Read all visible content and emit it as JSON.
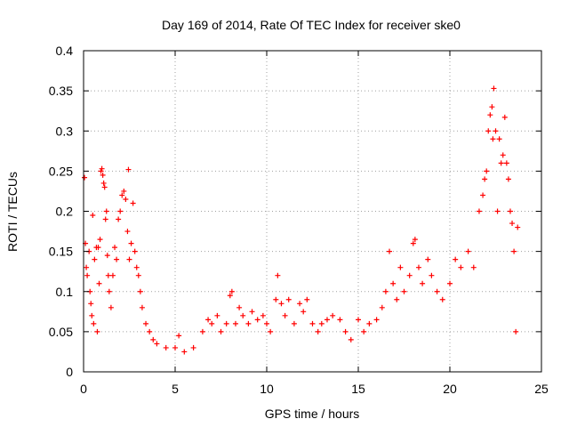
{
  "chart_data": {
    "type": "scatter",
    "title": "Day 169 of 2014, Rate Of TEC Index for receiver ske0",
    "xlabel": "GPS time / hours",
    "ylabel": "ROTI / TECUs",
    "xlim": [
      0,
      25
    ],
    "ylim": [
      0,
      0.4
    ],
    "x_ticks": [
      0,
      5,
      10,
      15,
      20,
      25
    ],
    "x_tick_labels": [
      "0",
      "5",
      "10",
      "15",
      "20",
      "25"
    ],
    "y_ticks": [
      0,
      0.05,
      0.1,
      0.15,
      0.2,
      0.25,
      0.3,
      0.35,
      0.4
    ],
    "y_tick_labels": [
      "0",
      "0.05",
      "0.1",
      "0.15",
      "0.2",
      "0.25",
      "0.3",
      "0.35",
      "0.4"
    ],
    "grid": true,
    "marker": "plus",
    "color": "#ff0000",
    "series": [
      {
        "points": [
          [
            0.05,
            0.242
          ],
          [
            0.1,
            0.16
          ],
          [
            0.15,
            0.13
          ],
          [
            0.2,
            0.12
          ],
          [
            0.3,
            0.15
          ],
          [
            0.35,
            0.1
          ],
          [
            0.4,
            0.085
          ],
          [
            0.45,
            0.07
          ],
          [
            0.5,
            0.195
          ],
          [
            0.55,
            0.06
          ],
          [
            0.6,
            0.14
          ],
          [
            0.7,
            0.155
          ],
          [
            0.75,
            0.05
          ],
          [
            0.8,
            0.155
          ],
          [
            0.85,
            0.11
          ],
          [
            0.9,
            0.165
          ],
          [
            0.95,
            0.25
          ],
          [
            1.0,
            0.253
          ],
          [
            1.05,
            0.245
          ],
          [
            1.1,
            0.235
          ],
          [
            1.15,
            0.23
          ],
          [
            1.2,
            0.19
          ],
          [
            1.25,
            0.2
          ],
          [
            1.3,
            0.145
          ],
          [
            1.35,
            0.12
          ],
          [
            1.4,
            0.1
          ],
          [
            1.5,
            0.08
          ],
          [
            1.6,
            0.12
          ],
          [
            1.7,
            0.155
          ],
          [
            1.8,
            0.14
          ],
          [
            1.9,
            0.19
          ],
          [
            2.0,
            0.2
          ],
          [
            2.1,
            0.22
          ],
          [
            2.2,
            0.225
          ],
          [
            2.3,
            0.215
          ],
          [
            2.4,
            0.175
          ],
          [
            2.45,
            0.252
          ],
          [
            2.5,
            0.14
          ],
          [
            2.6,
            0.16
          ],
          [
            2.7,
            0.21
          ],
          [
            2.8,
            0.15
          ],
          [
            2.9,
            0.13
          ],
          [
            3.0,
            0.12
          ],
          [
            3.1,
            0.1
          ],
          [
            3.2,
            0.08
          ],
          [
            3.4,
            0.06
          ],
          [
            3.6,
            0.05
          ],
          [
            3.8,
            0.04
          ],
          [
            4.0,
            0.035
          ],
          [
            4.5,
            0.03
          ],
          [
            5.0,
            0.03
          ],
          [
            5.2,
            0.045
          ],
          [
            5.5,
            0.025
          ],
          [
            6.0,
            0.03
          ],
          [
            6.5,
            0.05
          ],
          [
            6.8,
            0.065
          ],
          [
            7.0,
            0.06
          ],
          [
            7.3,
            0.07
          ],
          [
            7.5,
            0.05
          ],
          [
            7.8,
            0.06
          ],
          [
            8.0,
            0.095
          ],
          [
            8.1,
            0.1
          ],
          [
            8.3,
            0.06
          ],
          [
            8.5,
            0.08
          ],
          [
            8.7,
            0.07
          ],
          [
            9.0,
            0.06
          ],
          [
            9.2,
            0.075
          ],
          [
            9.5,
            0.065
          ],
          [
            9.8,
            0.07
          ],
          [
            10.0,
            0.06
          ],
          [
            10.2,
            0.05
          ],
          [
            10.5,
            0.09
          ],
          [
            10.6,
            0.12
          ],
          [
            10.8,
            0.085
          ],
          [
            11.0,
            0.07
          ],
          [
            11.2,
            0.09
          ],
          [
            11.5,
            0.06
          ],
          [
            11.8,
            0.085
          ],
          [
            12.0,
            0.075
          ],
          [
            12.2,
            0.09
          ],
          [
            12.5,
            0.06
          ],
          [
            12.8,
            0.05
          ],
          [
            13.0,
            0.06
          ],
          [
            13.3,
            0.065
          ],
          [
            13.6,
            0.07
          ],
          [
            14.0,
            0.065
          ],
          [
            14.3,
            0.05
          ],
          [
            14.6,
            0.04
          ],
          [
            15.0,
            0.065
          ],
          [
            15.3,
            0.05
          ],
          [
            15.6,
            0.06
          ],
          [
            16.0,
            0.065
          ],
          [
            16.3,
            0.08
          ],
          [
            16.5,
            0.1
          ],
          [
            16.7,
            0.15
          ],
          [
            16.9,
            0.11
          ],
          [
            17.1,
            0.09
          ],
          [
            17.3,
            0.13
          ],
          [
            17.5,
            0.1
          ],
          [
            17.8,
            0.12
          ],
          [
            18.0,
            0.16
          ],
          [
            18.1,
            0.165
          ],
          [
            18.3,
            0.13
          ],
          [
            18.5,
            0.11
          ],
          [
            18.8,
            0.14
          ],
          [
            19.0,
            0.12
          ],
          [
            19.3,
            0.1
          ],
          [
            19.6,
            0.09
          ],
          [
            20.0,
            0.11
          ],
          [
            20.3,
            0.14
          ],
          [
            20.6,
            0.13
          ],
          [
            21.0,
            0.15
          ],
          [
            21.3,
            0.13
          ],
          [
            21.6,
            0.2
          ],
          [
            21.8,
            0.22
          ],
          [
            21.9,
            0.24
          ],
          [
            22.0,
            0.25
          ],
          [
            22.1,
            0.3
          ],
          [
            22.2,
            0.32
          ],
          [
            22.3,
            0.33
          ],
          [
            22.35,
            0.29
          ],
          [
            22.4,
            0.353
          ],
          [
            22.5,
            0.3
          ],
          [
            22.6,
            0.2
          ],
          [
            22.7,
            0.29
          ],
          [
            22.8,
            0.26
          ],
          [
            22.9,
            0.27
          ],
          [
            23.0,
            0.317
          ],
          [
            23.1,
            0.26
          ],
          [
            23.2,
            0.24
          ],
          [
            23.3,
            0.2
          ],
          [
            23.4,
            0.185
          ],
          [
            23.5,
            0.15
          ],
          [
            23.6,
            0.05
          ],
          [
            23.7,
            0.18
          ]
        ]
      }
    ]
  }
}
